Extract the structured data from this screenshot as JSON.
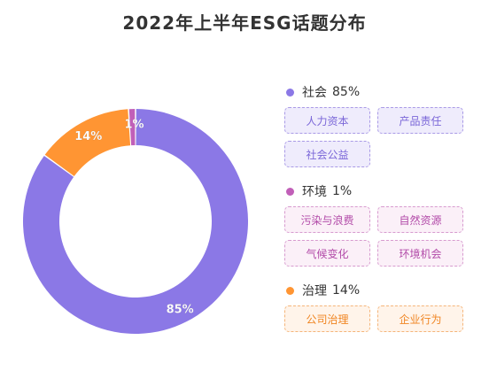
{
  "title": "2022年上半年ESG话题分布",
  "chart_data": {
    "type": "pie",
    "donut": true,
    "title": "2022年上半年ESG话题分布",
    "slices": [
      {
        "name": "社会",
        "value": 85,
        "label": "85%",
        "color": "#8b78e6"
      },
      {
        "name": "环境",
        "value": 1,
        "label": "1%",
        "color": "#c15fb8"
      },
      {
        "name": "治理",
        "value": 14,
        "label": "14%",
        "color": "#ff9533"
      }
    ]
  },
  "legend": [
    {
      "name": "社会",
      "pct": "85%",
      "color": "#8b78e6",
      "tag_bg": "#efecfc",
      "tag_border": "#a99ae6",
      "tag_text": "#7a66d8",
      "tags": [
        "人力资本",
        "产品责任",
        "社会公益"
      ]
    },
    {
      "name": "环境",
      "pct": "1%",
      "color": "#c15fb8",
      "tag_bg": "#fbf0f8",
      "tag_border": "#d79bcf",
      "tag_text": "#b24aa8",
      "tags": [
        "污染与浪费",
        "自然资源",
        "气候变化",
        "环境机会"
      ]
    },
    {
      "name": "治理",
      "pct": "14%",
      "color": "#ff9533",
      "tag_bg": "#fff4ea",
      "tag_border": "#f5b57a",
      "tag_text": "#f08522",
      "tags": [
        "公司治理",
        "企业行为"
      ]
    }
  ]
}
